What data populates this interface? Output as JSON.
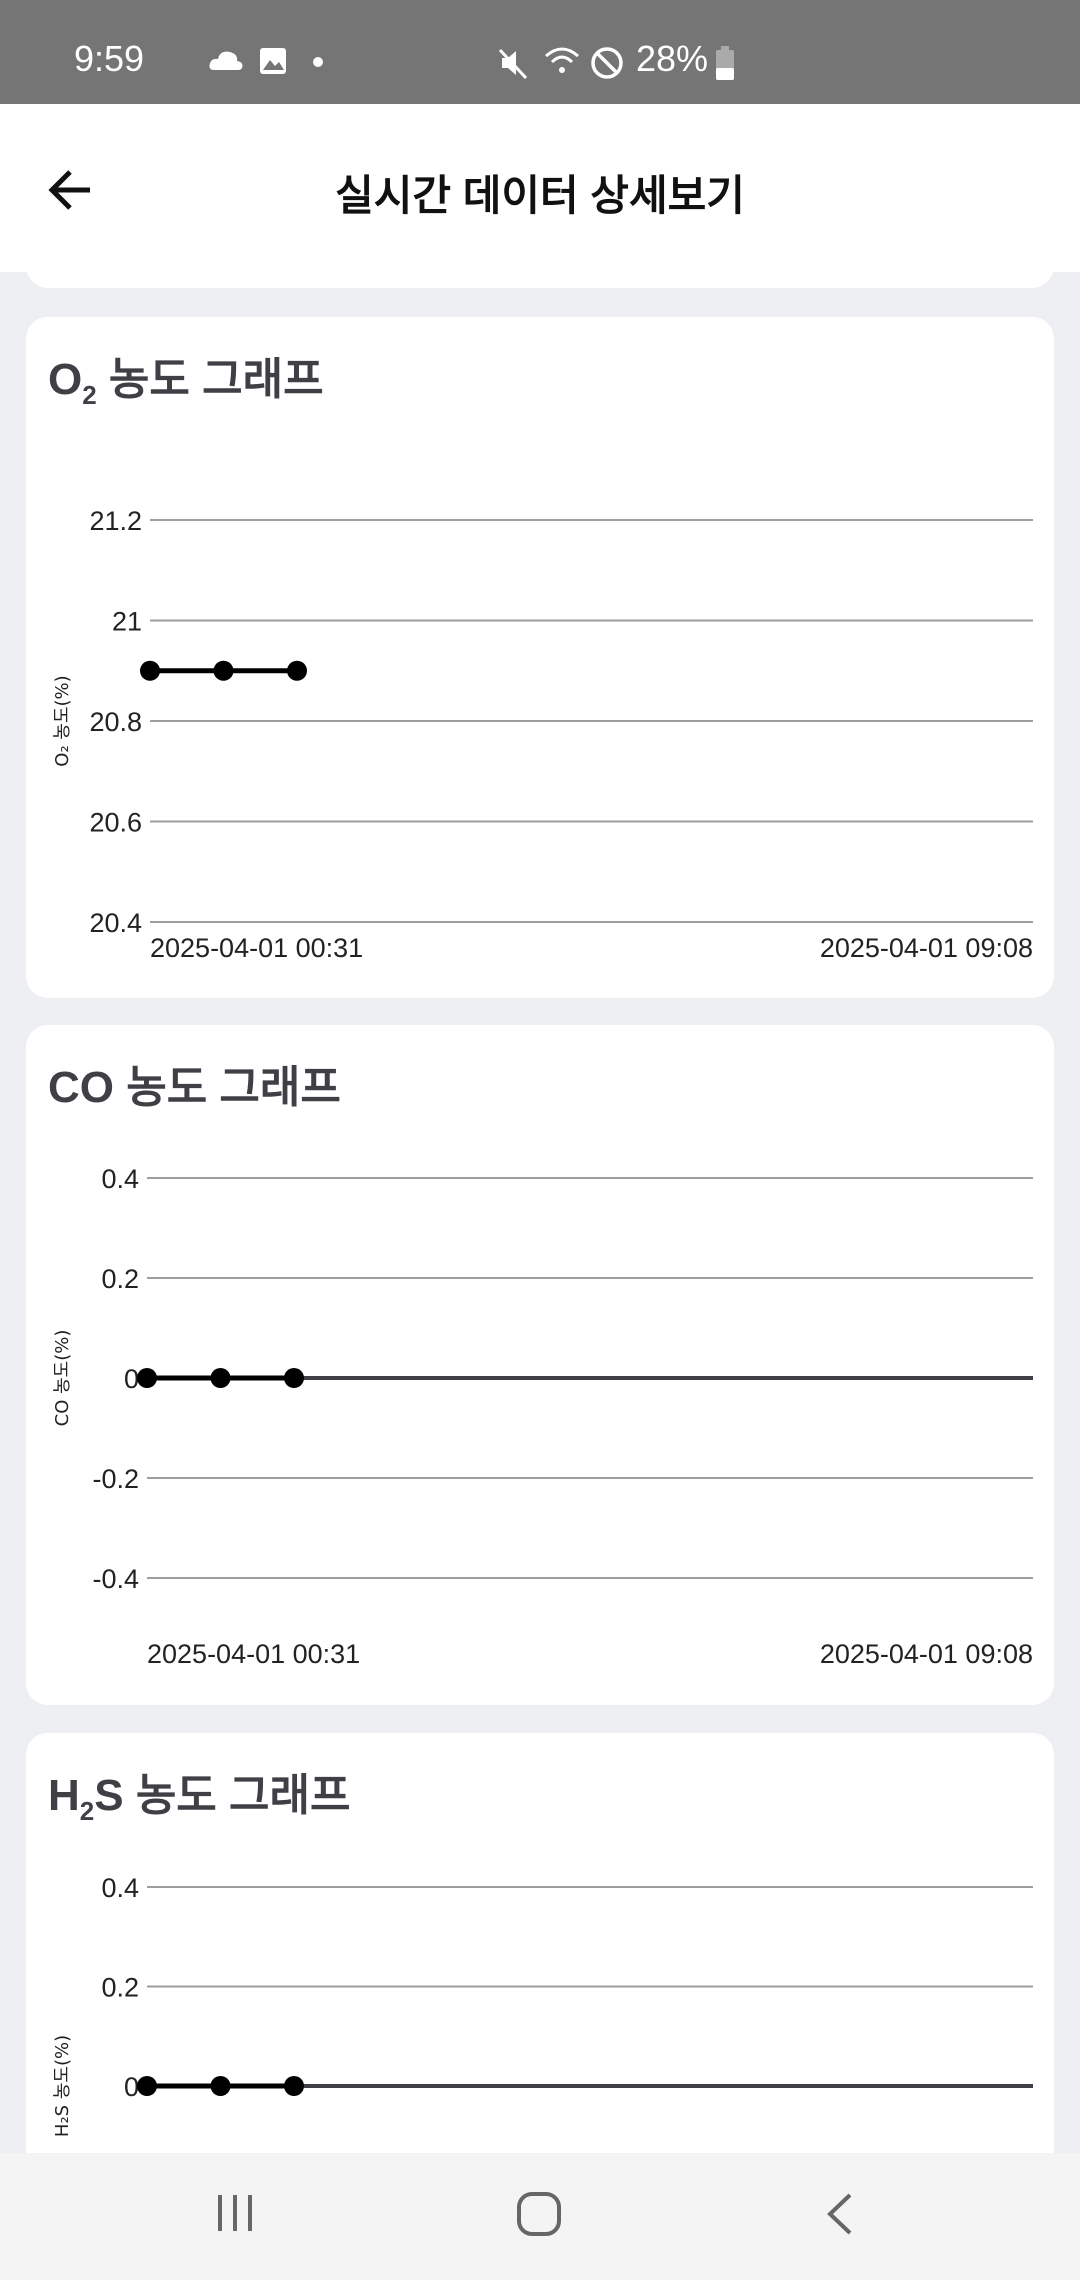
{
  "status_bar": {
    "time": "9:59",
    "battery": "28%",
    "icons": [
      "carrier-icon",
      "cloud-icon",
      "gallery-icon",
      "dot-icon",
      "mute-icon",
      "wifi-icon",
      "do-not-disturb-icon",
      "battery-icon"
    ]
  },
  "header": {
    "title": "실시간 데이터 상세보기",
    "back_icon": "arrow-left-icon"
  },
  "colors": {
    "background": "#eeeff3",
    "card": "#ffffff",
    "grid": "#9e9e9e",
    "zero_line": "#3f3f46",
    "series": "#000000",
    "status_bar": "#757575"
  },
  "chart_data": [
    {
      "type": "line",
      "title_main": "O",
      "title_sub": "2",
      "title_rest": " 농도 그래프",
      "ylabel": "O₂ 농도(%)",
      "yticks": [
        "21.2",
        "21",
        "20.8",
        "20.6",
        "20.4"
      ],
      "ylim": [
        20.4,
        21.2
      ],
      "x_start_label": "2025-04-01 00:31",
      "x_end_label": "2025-04-01 09:08",
      "series": [
        {
          "values": [
            20.9,
            20.9,
            20.9
          ]
        }
      ]
    },
    {
      "type": "line",
      "title_main": "CO",
      "title_sub": "",
      "title_rest": " 농도 그래프",
      "ylabel": "CO 농도(%)",
      "yticks": [
        "0.4",
        "0.2",
        "0",
        "-0.2",
        "-0.4"
      ],
      "ylim": [
        -0.4,
        0.4
      ],
      "x_start_label": "2025-04-01 00:31",
      "x_end_label": "2025-04-01 09:08",
      "series": [
        {
          "values": [
            0,
            0,
            0
          ]
        }
      ]
    },
    {
      "type": "line",
      "title_main": "H",
      "title_sub": "2",
      "title_rest": "S 농도 그래프",
      "ylabel": "H₂S 농도(%)",
      "yticks": [
        "0.4",
        "0.2",
        "0"
      ],
      "ylim": [
        -0.4,
        0.4
      ],
      "series": [
        {
          "values": [
            0,
            0,
            0
          ]
        }
      ]
    }
  ],
  "nav_bar": {
    "buttons": [
      "recent-apps-icon",
      "home-icon",
      "back-icon"
    ]
  }
}
